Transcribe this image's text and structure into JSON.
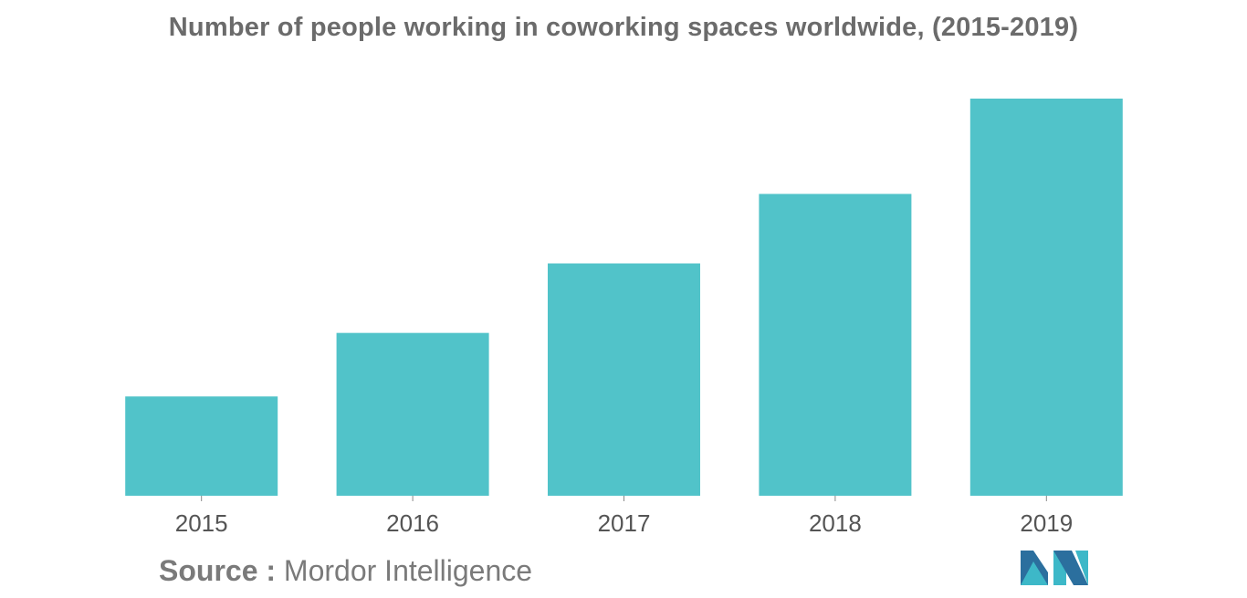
{
  "title": "Number of people working in coworking spaces worldwide, (2015-2019)",
  "source": {
    "label": "Source :",
    "text": "Mordor Intelligence"
  },
  "logo": {
    "icon": "mordor-intelligence-logo",
    "colors": [
      "#2b6f9e",
      "#3db8c8",
      "#1f5a85"
    ]
  },
  "chart_data": {
    "type": "bar",
    "title": "Number of people working in coworking spaces worldwide, (2015-2019)",
    "xlabel": "",
    "ylabel": "",
    "categories": [
      "2015",
      "2016",
      "2017",
      "2018",
      "2019"
    ],
    "values": [
      25,
      41,
      58.5,
      76,
      100
    ],
    "ylim": [
      0,
      100
    ],
    "grid": false,
    "legend": "none",
    "bar_color": "#51c3c9"
  }
}
